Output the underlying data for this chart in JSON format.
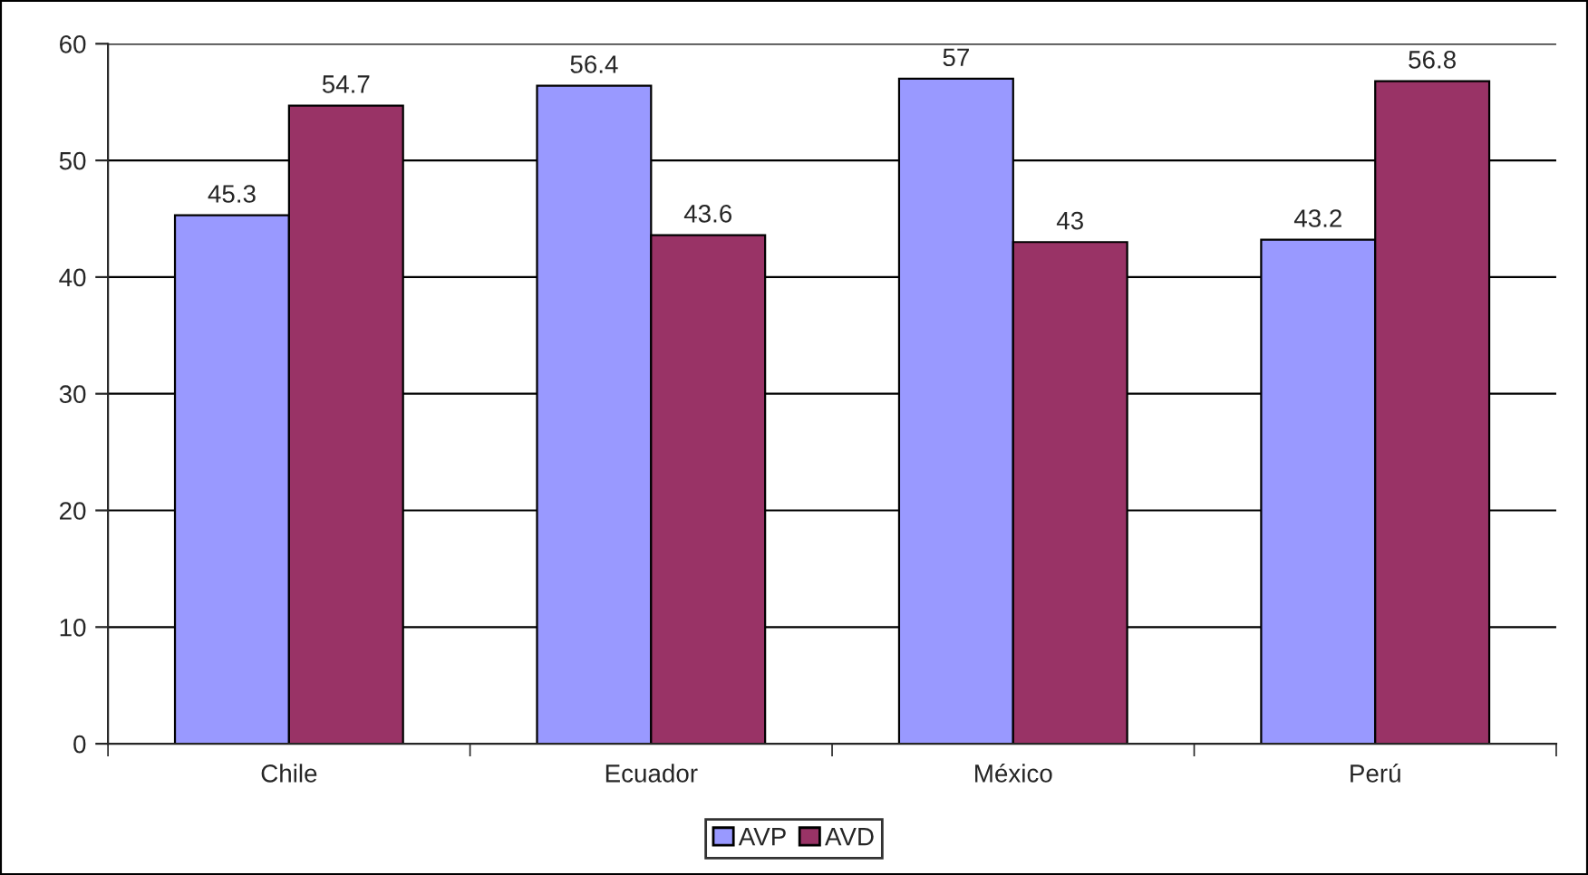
{
  "chart_data": {
    "type": "bar",
    "categories": [
      "Chile",
      "Ecuador",
      "México",
      "Perú"
    ],
    "series": [
      {
        "name": "AVP",
        "color": "#9999ff",
        "values": [
          45.3,
          56.4,
          57,
          43.2
        ]
      },
      {
        "name": "AVD",
        "color": "#993366",
        "values": [
          54.7,
          43.6,
          43,
          56.8
        ]
      }
    ],
    "ylim": [
      0,
      60
    ],
    "yticks": [
      0,
      10,
      20,
      30,
      40,
      50,
      60
    ],
    "grid": "y",
    "legend": "bottom",
    "data_labels": true
  }
}
